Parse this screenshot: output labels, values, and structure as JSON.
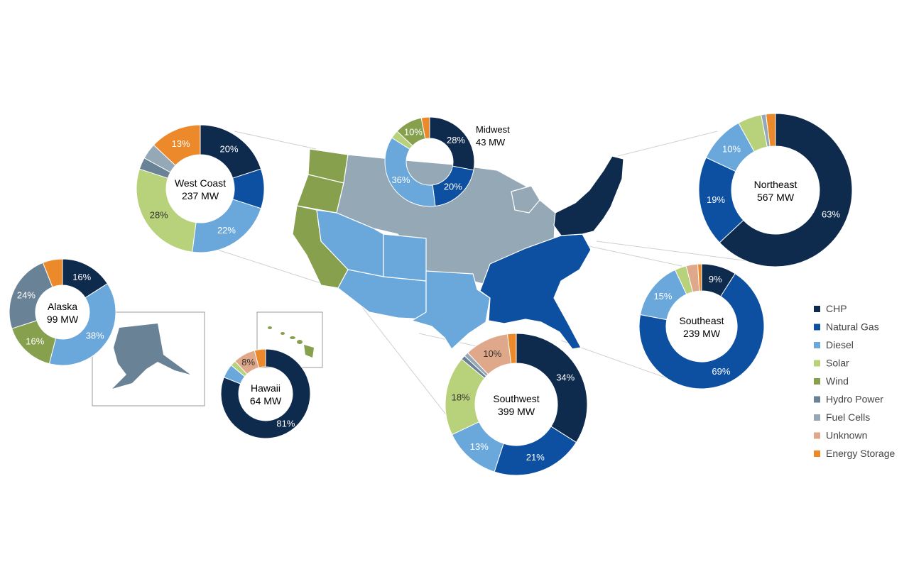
{
  "chart_data": {
    "type": "pie",
    "variant": "donut",
    "categories": [
      "CHP",
      "Natural Gas",
      "Diesel",
      "Solar",
      "Wind",
      "Hydro Power",
      "Fuel Cells",
      "Unknown",
      "Energy Storage"
    ],
    "colors": {
      "CHP": "#0e2a4d",
      "Natural Gas": "#0d4fa0",
      "Diesel": "#6aa8dc",
      "Solar": "#b8d27c",
      "Wind": "#86a04e",
      "Hydro Power": "#6a8296",
      "Fuel Cells": "#95a8b6",
      "Unknown": "#dfa88a",
      "Energy Storage": "#ec8a2b"
    },
    "legend": {
      "position": "right",
      "items": [
        "CHP",
        "Natural Gas",
        "Diesel",
        "Solar",
        "Wind",
        "Hydro Power",
        "Fuel Cells",
        "Unknown",
        "Energy Storage"
      ]
    },
    "regions": [
      {
        "name": "Northeast",
        "capacity": "567 MW",
        "shares": [
          63,
          19,
          10,
          5,
          0,
          0,
          1,
          0,
          2
        ],
        "labels": [
          "63%",
          "19%",
          "10%",
          "",
          "",
          "",
          "",
          "",
          ""
        ]
      },
      {
        "name": "Midwest",
        "capacity": "43 MW",
        "shares": [
          28,
          20,
          36,
          3,
          10,
          0,
          0,
          0,
          3
        ],
        "labels": [
          "28%",
          "20%",
          "36%",
          "",
          "10%",
          "",
          "",
          "",
          ""
        ]
      },
      {
        "name": "West Coast",
        "capacity": "237 MW",
        "shares": [
          20,
          10,
          22,
          28,
          0,
          3,
          4,
          0,
          13
        ],
        "labels": [
          "20%",
          "",
          "22%",
          "28%",
          "",
          "",
          "",
          "",
          "13%"
        ]
      },
      {
        "name": "Alaska",
        "capacity": "99 MW",
        "shares": [
          16,
          0,
          38,
          0,
          16,
          24,
          0,
          0,
          6
        ],
        "labels": [
          "16%",
          "",
          "38%",
          "",
          "16%",
          "24%",
          "",
          "",
          ""
        ]
      },
      {
        "name": "Hawaii",
        "capacity": "64 MW",
        "shares": [
          81,
          0,
          5,
          2,
          0,
          0,
          0,
          8,
          4
        ],
        "labels": [
          "81%",
          "",
          "",
          "",
          "",
          "",
          "",
          "8%",
          ""
        ]
      },
      {
        "name": "Southwest",
        "capacity": "399 MW",
        "shares": [
          34,
          21,
          13,
          18,
          0,
          1,
          1,
          10,
          2
        ],
        "labels": [
          "34%",
          "21%",
          "13%",
          "18%",
          "",
          "",
          "",
          "10%",
          ""
        ]
      },
      {
        "name": "Southeast",
        "capacity": "239 MW",
        "shares": [
          9,
          69,
          15,
          3,
          0,
          0,
          0,
          3,
          1
        ],
        "labels": [
          "9%",
          "69%",
          "15%",
          "",
          "",
          "",
          "",
          "",
          ""
        ]
      }
    ]
  }
}
